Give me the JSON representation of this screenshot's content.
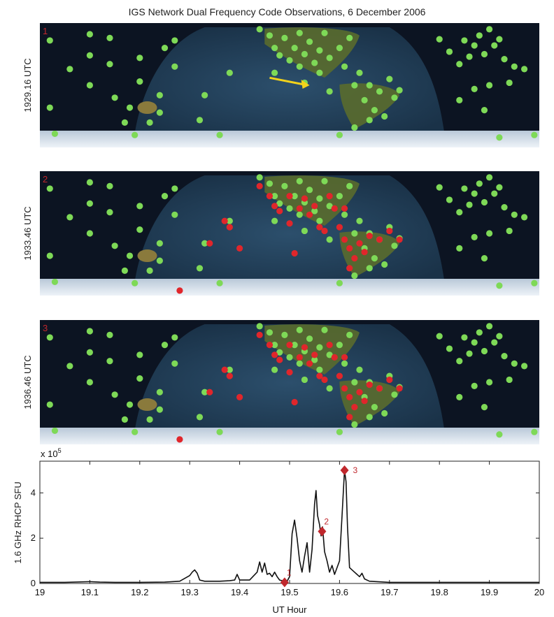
{
  "figure": {
    "title": "IGS Network Dual Frequency Code Observations, 6 December 2006"
  },
  "colors": {
    "green": "#7ed957",
    "red": "#e0262b",
    "arrow": "#f2d21b",
    "ocean": "#1f3a52",
    "night": "#0c1422",
    "ice": "#dfe8f2",
    "land": "#5a6b2e",
    "line": "#111111",
    "marker": "#c0282d"
  },
  "panels": [
    {
      "label": "1",
      "time": "1929.16 UTC"
    },
    {
      "label": "2",
      "time": "1933.46 UTC"
    },
    {
      "label": "3",
      "time": "1936.46 UTC"
    }
  ],
  "chart_data": {
    "type": "line",
    "xlabel": "UT Hour",
    "ylabel": "1.6 GHz RHCP SFU",
    "y_multiplier": "x 10",
    "y_exponent": "5",
    "xlim": [
      19,
      20
    ],
    "ylim": [
      0,
      5.4
    ],
    "xticks": [
      "19",
      "19.1",
      "19.2",
      "19.3",
      "19.4",
      "19.5",
      "19.6",
      "19.7",
      "19.8",
      "19.9",
      "20"
    ],
    "yticks": [
      "0",
      "2",
      "4"
    ],
    "grid": false,
    "series": [
      {
        "x": [
          19.0,
          19.05,
          19.1,
          19.12,
          19.15,
          19.2,
          19.25,
          19.28,
          19.3,
          19.305,
          19.31,
          19.315,
          19.32,
          19.33,
          19.36,
          19.38,
          19.39,
          19.395,
          19.4,
          19.42,
          19.435,
          19.44,
          19.445,
          19.45,
          19.455,
          19.46,
          19.465,
          19.47,
          19.475,
          19.48,
          19.49,
          19.495,
          19.5,
          19.505,
          19.51,
          19.515,
          19.52,
          19.525,
          19.53,
          19.535,
          19.54,
          19.545,
          19.55,
          19.553,
          19.556,
          19.56,
          19.563,
          19.566,
          19.57,
          19.575,
          19.58,
          19.585,
          19.59,
          19.6,
          19.605,
          19.61,
          19.613,
          19.616,
          19.62,
          19.63,
          19.64,
          19.645,
          19.65,
          19.66,
          19.7,
          19.8,
          19.9,
          20.0
        ],
        "y": [
          0.05,
          0.05,
          0.08,
          0.06,
          0.05,
          0.05,
          0.06,
          0.1,
          0.35,
          0.5,
          0.6,
          0.45,
          0.15,
          0.1,
          0.1,
          0.12,
          0.15,
          0.4,
          0.15,
          0.15,
          0.5,
          0.95,
          0.5,
          0.9,
          0.4,
          0.45,
          0.3,
          0.5,
          0.3,
          0.15,
          0.1,
          0.1,
          0.3,
          2.2,
          2.8,
          2.0,
          1.0,
          0.5,
          1.2,
          1.8,
          0.5,
          1.5,
          3.5,
          4.1,
          3.0,
          2.6,
          2.1,
          2.5,
          1.4,
          1.0,
          0.5,
          0.8,
          0.4,
          1.0,
          3.0,
          5.0,
          4.5,
          2.5,
          0.7,
          0.5,
          0.3,
          0.45,
          0.2,
          0.1,
          0.05,
          0.05,
          0.05,
          0.05
        ]
      }
    ],
    "markers": [
      {
        "label": "1",
        "x": 19.49,
        "y": 0.05
      },
      {
        "label": "2",
        "x": 19.565,
        "y": 2.3
      },
      {
        "label": "3",
        "x": 19.61,
        "y": 5.0
      }
    ]
  }
}
